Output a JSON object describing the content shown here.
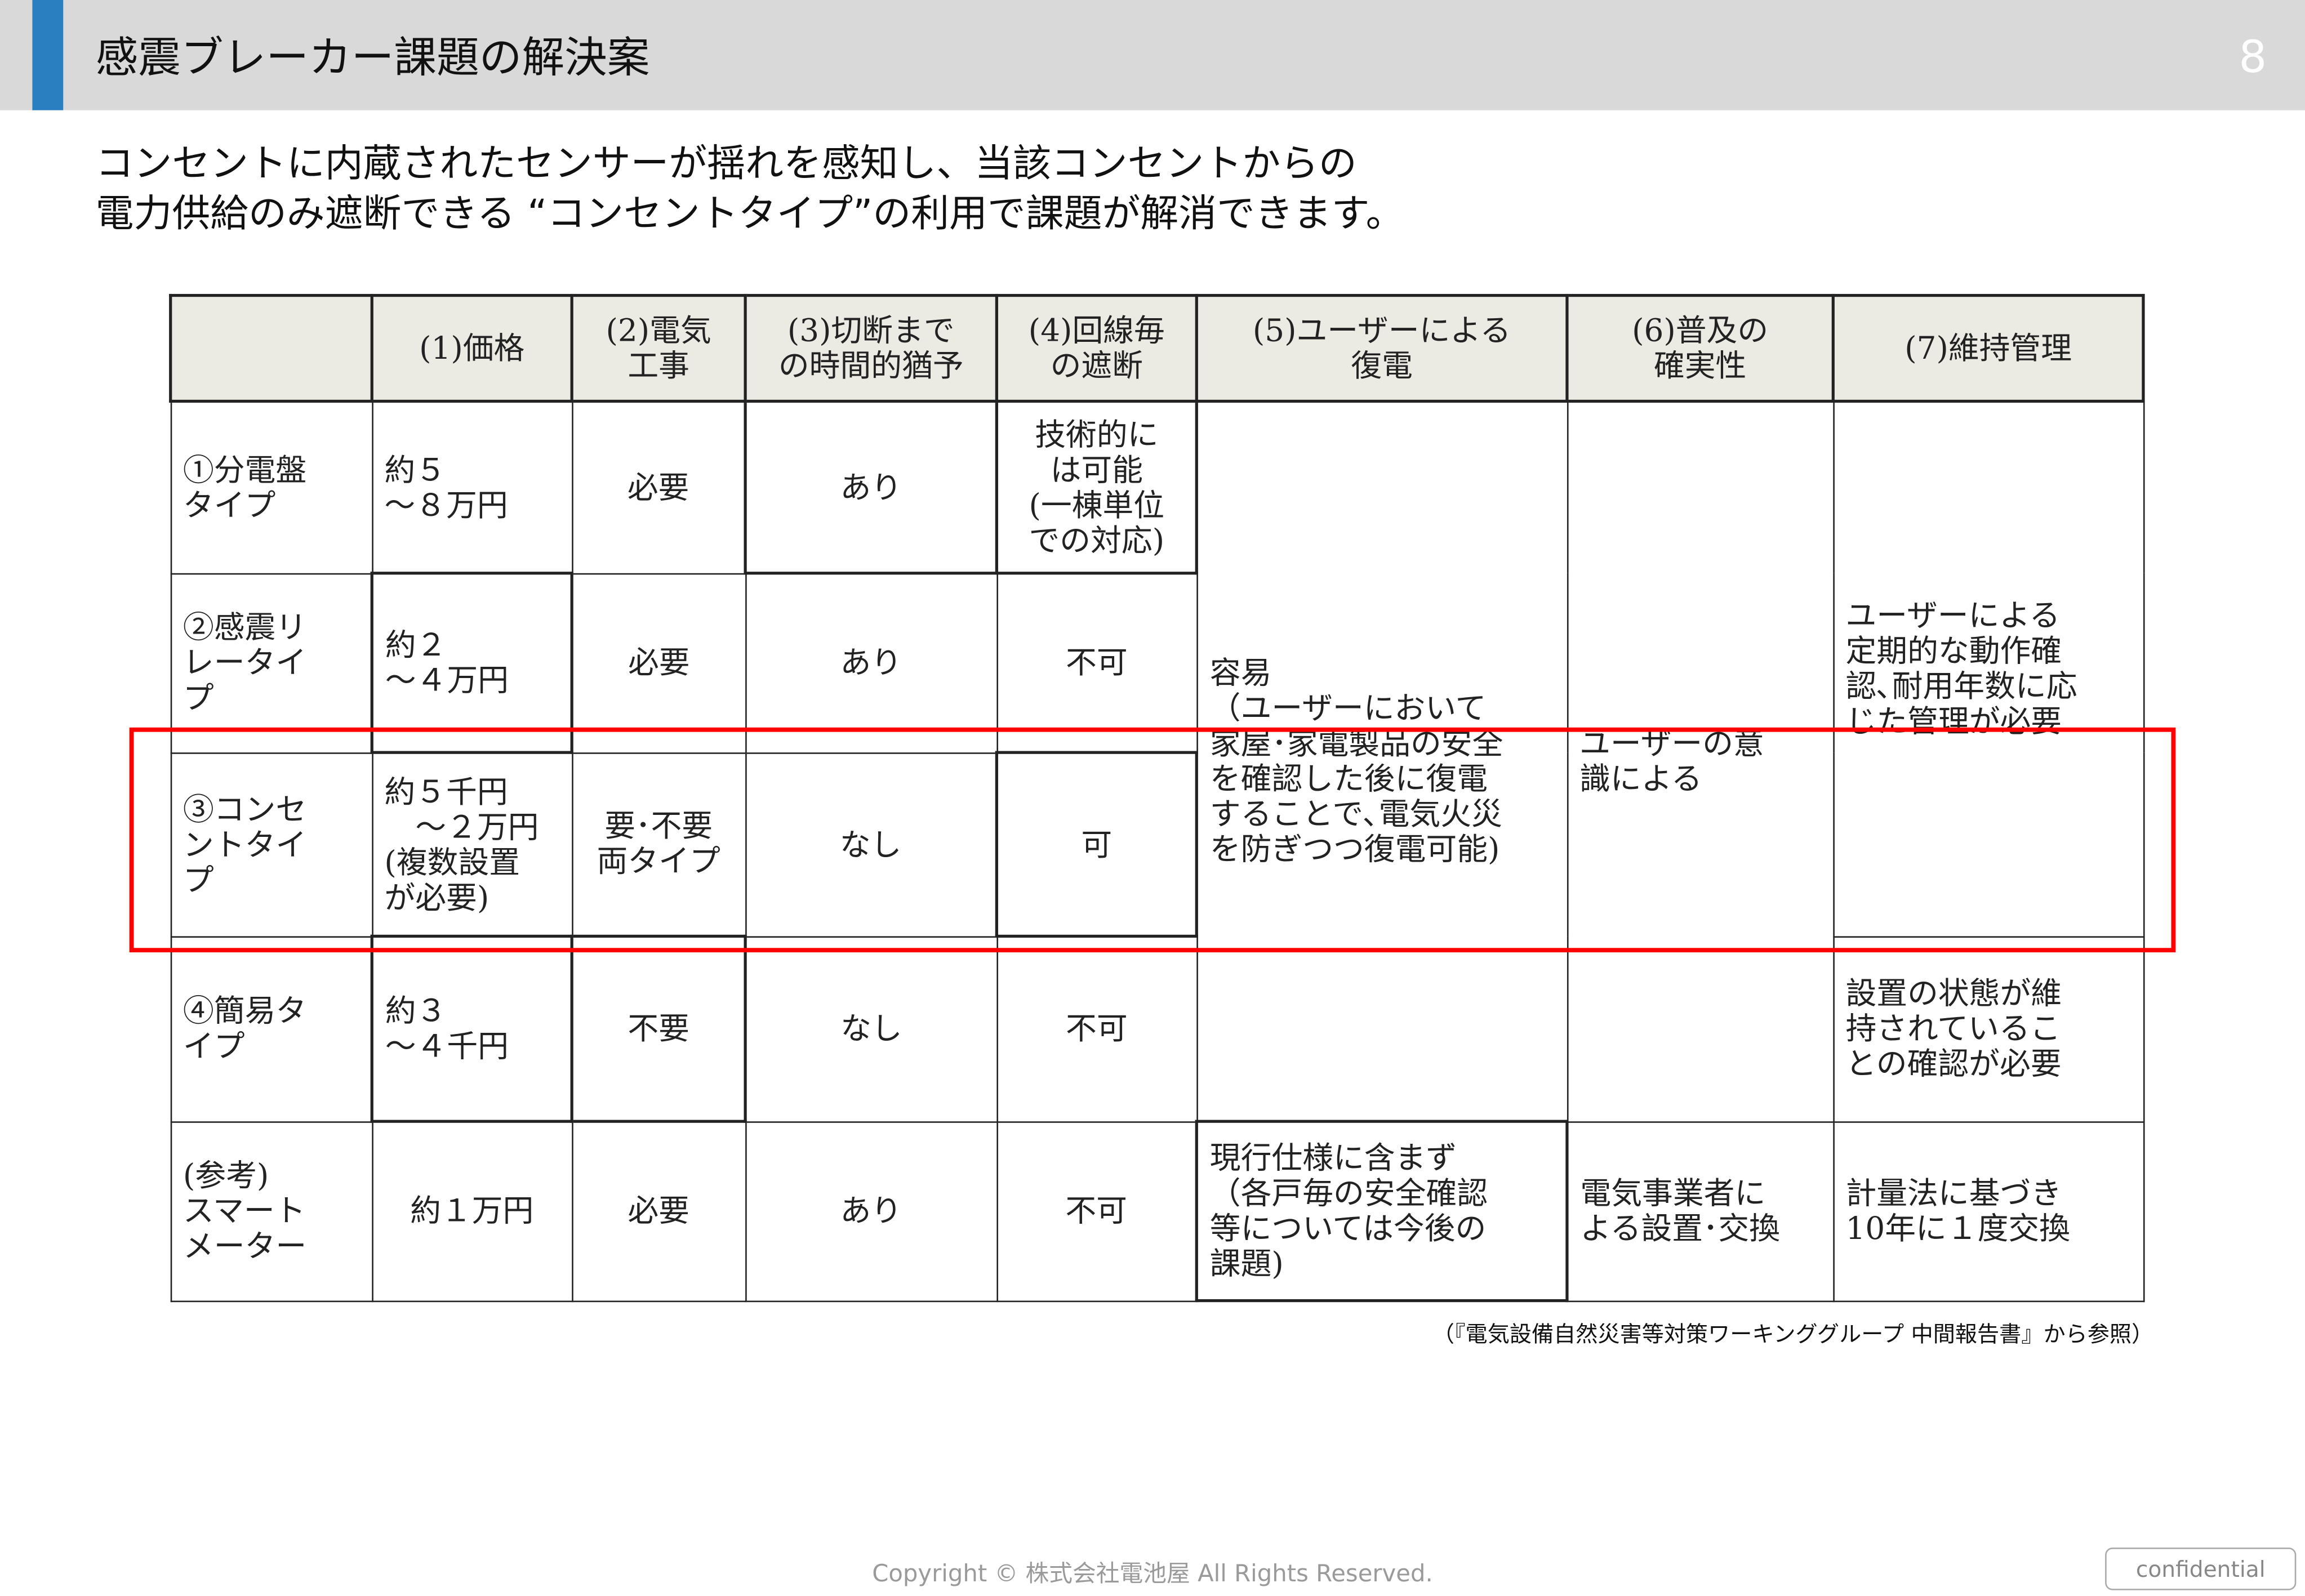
{
  "header": {
    "title": "感震ブレーカー課題の解決案",
    "page_number": "8",
    "accent_color": "#2a7fc0",
    "bar_color": "#d9d9d9"
  },
  "lead": {
    "text": "コンセントに内蔵されたセンサーが揺れを感知し、当該コンセントからの\n電力供給のみ遮断できる “コンセントタイプ”の利用で課題が解消できます。"
  },
  "table": {
    "headers": [
      "",
      "(1)価格",
      "(2)電気\n工事",
      "(3)切断まで\nの時間的猶予",
      "(4)回線毎\nの遮断",
      "(5)ユーザーによる\n復電",
      "(6)普及の\n確実性",
      "(7)維持管理"
    ],
    "rows": [
      {
        "type": "①分電盤\nタイプ",
        "price": "約５\n～８万円",
        "work": "必要",
        "grace": "あり",
        "circuit": "技術的に\nは可能\n(一棟単位\nでの対応)"
      },
      {
        "type": "②感震リ\nレータイ\nプ",
        "price": "約２\n～４万円",
        "work": "必要",
        "grace": "あり",
        "circuit": "不可"
      },
      {
        "type": "③コンセ\nントタイ\nプ",
        "price": "約５千円\n　～２万円\n(複数設置\nが必要)",
        "work": "要･不要\n両タイプ",
        "grace": "なし",
        "circuit": "可"
      },
      {
        "type": "④簡易タ\nイプ",
        "price": "約３\n～４千円",
        "work": "不要",
        "grace": "なし",
        "circuit": "不可"
      },
      {
        "type": "(参考)\nスマート\nメーター",
        "price": "約１万円",
        "work": "必要",
        "grace": "あり",
        "circuit": "不可",
        "restore": "現行仕様に含まず\n（各戸毎の安全確認\n等については今後の\n課題)",
        "spread": "電気事業者に\nよる設置･交換",
        "maintenance": "計量法に基づき\n10年に１度交換"
      }
    ],
    "restore_shared": "容易\n（ユーザーにおいて\n家屋･家電製品の安全\nを確認した後に復電\nすることで､電気火災\nを防ぎつつ復電可能)",
    "spread_shared": "ユーザーの意\n識による",
    "maintenance_shared": "ユーザーによる\n定期的な動作確\n認､耐用年数に応\nじた管理が必要",
    "maintenance_row4": "設置の状態が維\n持されているこ\nとの確認が必要",
    "highlight_color": "#ff0000",
    "header_bg": "#ecebe3"
  },
  "source_note": "（『電気設備自然災害等対策ワーキンググループ 中間報告書』から参照）",
  "footer": {
    "copyright": "Copyright © 株式会社電池屋 All Rights Reserved.",
    "confidential": "confidential"
  }
}
